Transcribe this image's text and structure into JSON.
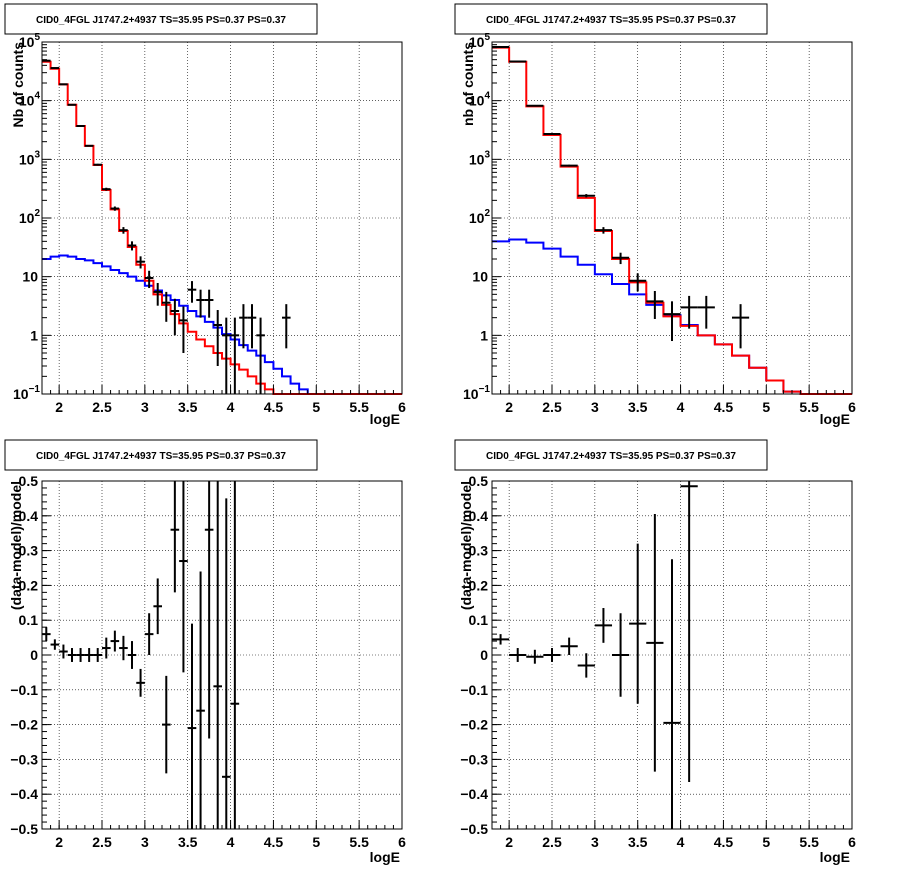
{
  "chart_data": [
    {
      "id": "p1",
      "type": "step-histogram",
      "title": "CID0_4FGL J1747.2+4937 TS=35.95 PS=0.37 PS=0.37",
      "xlabel": "logE",
      "ylabel": "Nb of counts",
      "xlim": [
        1.8,
        6.0
      ],
      "ylim": [
        0.1,
        100000
      ],
      "log_y": true,
      "grid": true,
      "x_ticks": [
        2,
        2.5,
        3,
        3.5,
        4,
        4.5,
        5,
        5.5,
        6
      ],
      "x_tick_labels": [
        "2",
        "2.5",
        "3",
        "3.5",
        "4",
        "4.5",
        "5",
        "5.5",
        "6"
      ],
      "y_ticks": [
        0.1,
        1,
        10,
        100,
        1000,
        10000,
        100000
      ],
      "y_tick_labels": [
        [
          "10",
          "−1"
        ],
        [
          "1",
          ""
        ],
        [
          "10",
          ""
        ],
        [
          "10",
          "2"
        ],
        [
          "10",
          "3"
        ],
        [
          "10",
          "4"
        ],
        [
          "10",
          "5"
        ]
      ],
      "bin_edges": [
        1.8,
        1.9,
        2.0,
        2.1,
        2.2,
        2.3,
        2.4,
        2.5,
        2.6,
        2.7,
        2.8,
        2.9,
        3.0,
        3.1,
        3.2,
        3.3,
        3.4,
        3.5,
        3.6,
        3.7,
        3.8,
        3.9,
        4.0,
        4.1,
        4.2,
        4.3,
        4.4,
        4.5,
        4.6,
        4.7,
        4.8,
        4.9,
        5.0,
        5.1,
        5.2,
        5.3,
        5.4,
        5.5,
        5.6,
        5.7,
        5.8,
        5.9,
        6.0
      ],
      "series": [
        {
          "color": "#0000ff",
          "kind": "step",
          "values": [
            20,
            22,
            23,
            22,
            20,
            19,
            17,
            15,
            13,
            11.5,
            10,
            8.5,
            7,
            5.8,
            4.8,
            4,
            3.2,
            2.6,
            2.1,
            1.7,
            1.35,
            1.05,
            0.85,
            0.68,
            0.55,
            0.45,
            0.35,
            0.27,
            0.2,
            0.15,
            0.12,
            0.1,
            0.1,
            0.1,
            0.1,
            0.1,
            0.1,
            0.1,
            0.1,
            0.1,
            0.1,
            0.1
          ]
        },
        {
          "color": "#ff0000",
          "kind": "step",
          "values": [
            46000,
            35000,
            19000,
            8500,
            3700,
            1700,
            800,
            300,
            140,
            60,
            32,
            16,
            8.5,
            5,
            3.3,
            2.3,
            1.6,
            1.15,
            0.85,
            0.65,
            0.5,
            0.4,
            0.32,
            0.26,
            0.2,
            0.15,
            0.12,
            0.1,
            0.1,
            0.1,
            0.1,
            0.1,
            0.1,
            0.1,
            0.1,
            0.1,
            0.1,
            0.1,
            0.1,
            0.1,
            0.1,
            0.1
          ]
        },
        {
          "color": "#000000",
          "kind": "points",
          "x": [
            1.85,
            1.95,
            2.05,
            2.15,
            2.25,
            2.35,
            2.45,
            2.55,
            2.65,
            2.75,
            2.85,
            2.95,
            3.05,
            3.15,
            3.25,
            3.35,
            3.45,
            3.55,
            3.65,
            3.75,
            3.85,
            3.95,
            4.05,
            4.15,
            4.25,
            4.35,
            4.65
          ],
          "y": [
            48000,
            36000,
            19000,
            8500,
            3700,
            1700,
            810,
            310,
            145,
            62,
            34,
            18,
            9.5,
            5.5,
            3.6,
            2.6,
            1.8,
            6,
            4,
            4,
            1.5,
            1,
            1,
            2,
            2,
            1,
            2
          ],
          "yerr": [
            220,
            190,
            140,
            92,
            61,
            41,
            28,
            18,
            12,
            8,
            6,
            4.2,
            3.1,
            2.3,
            1.9,
            1.6,
            1.3,
            2.4,
            2,
            2,
            1.2,
            1,
            1,
            1.4,
            1.4,
            1,
            1.4
          ]
        }
      ]
    },
    {
      "id": "p2",
      "type": "step-histogram",
      "title": "CID0_4FGL J1747.2+4937 TS=35.95 PS=0.37 PS=0.37",
      "xlabel": "logE",
      "ylabel": "nb of counts",
      "xlim": [
        1.8,
        6.0
      ],
      "ylim": [
        0.1,
        100000
      ],
      "log_y": true,
      "grid": true,
      "x_ticks": [
        2,
        2.5,
        3,
        3.5,
        4,
        4.5,
        5,
        5.5,
        6
      ],
      "x_tick_labels": [
        "2",
        "2.5",
        "3",
        "3.5",
        "4",
        "4.5",
        "5",
        "5.5",
        "6"
      ],
      "y_ticks": [
        0.1,
        1,
        10,
        100,
        1000,
        10000,
        100000
      ],
      "y_tick_labels": [
        [
          "10",
          "−1"
        ],
        [
          "1",
          ""
        ],
        [
          "10",
          ""
        ],
        [
          "10",
          "2"
        ],
        [
          "10",
          "3"
        ],
        [
          "10",
          "4"
        ],
        [
          "10",
          "5"
        ]
      ],
      "bin_edges": [
        1.8,
        2.0,
        2.2,
        2.4,
        2.6,
        2.8,
        3.0,
        3.2,
        3.4,
        3.6,
        3.8,
        4.0,
        4.2,
        4.4,
        4.6,
        4.8,
        5.0,
        5.2,
        5.4,
        5.6,
        5.8,
        6.0
      ],
      "series": [
        {
          "color": "#0000ff",
          "kind": "step",
          "values": [
            40,
            43,
            38,
            30,
            22,
            16,
            11,
            7.5,
            5,
            3.3,
            2.2,
            1.5,
            1,
            0.7,
            0.45,
            0.28,
            0.17,
            0.11,
            0.1,
            0.1,
            0.1
          ]
        },
        {
          "color": "#ff0000",
          "kind": "step",
          "values": [
            80000,
            46000,
            8000,
            2600,
            750,
            220,
            60,
            20,
            8,
            3.6,
            2.1,
            1.45,
            1,
            0.7,
            0.45,
            0.28,
            0.17,
            0.11,
            0.1,
            0.1,
            0.1
          ]
        },
        {
          "color": "#000000",
          "kind": "points",
          "x": [
            1.9,
            2.1,
            2.3,
            2.5,
            2.7,
            2.9,
            3.1,
            3.3,
            3.5,
            3.7,
            3.9,
            4.1,
            4.3,
            4.7
          ],
          "y": [
            82000,
            46500,
            8200,
            2700,
            780,
            240,
            62,
            21,
            8.5,
            3.8,
            2.3,
            3,
            3,
            2
          ],
          "yerr": [
            290,
            216,
            91,
            52,
            28,
            15.5,
            7.9,
            4.6,
            2.9,
            1.9,
            1.5,
            1.7,
            1.7,
            1.4
          ]
        }
      ]
    },
    {
      "id": "p3",
      "type": "residual",
      "title": "CID0_4FGL J1747.2+4937 TS=35.95 PS=0.37 PS=0.37",
      "xlabel": "logE",
      "ylabel": "(data-model)/model",
      "xlim": [
        1.8,
        6.0
      ],
      "ylim": [
        -0.5,
        0.5
      ],
      "log_y": false,
      "grid": true,
      "x_ticks": [
        2,
        2.5,
        3,
        3.5,
        4,
        4.5,
        5,
        5.5,
        6
      ],
      "x_tick_labels": [
        "2",
        "2.5",
        "3",
        "3.5",
        "4",
        "4.5",
        "5",
        "5.5",
        "6"
      ],
      "y_ticks": [
        -0.5,
        -0.4,
        -0.3,
        -0.2,
        -0.1,
        0,
        0.1,
        0.2,
        0.3,
        0.4,
        0.5
      ],
      "y_tick_labels": [
        "−0.5",
        "−0.4",
        "−0.3",
        "−0.2",
        "−0.1",
        "0",
        "0.1",
        "0.2",
        "0.3",
        "0.4",
        "0.5"
      ],
      "series": [
        {
          "color": "#000000",
          "kind": "points",
          "x": [
            1.85,
            1.95,
            2.05,
            2.15,
            2.25,
            2.35,
            2.45,
            2.55,
            2.65,
            2.75,
            2.85,
            2.95,
            3.05,
            3.15,
            3.25,
            3.35,
            3.45,
            3.55,
            3.65,
            3.75,
            3.85,
            3.95,
            4.05
          ],
          "y": [
            0.06,
            0.03,
            0.01,
            0.0,
            0.0,
            0.0,
            0.0,
            0.02,
            0.04,
            0.02,
            0.0,
            -0.08,
            0.06,
            0.14,
            -0.2,
            0.36,
            0.27,
            -0.21,
            -0.16,
            0.36,
            -0.09,
            -0.35,
            -0.14
          ],
          "yerr": [
            0.02,
            0.015,
            0.02,
            0.02,
            0.02,
            0.02,
            0.02,
            0.03,
            0.03,
            0.035,
            0.04,
            0.04,
            0.06,
            0.08,
            0.14,
            0.18,
            0.32,
            0.3,
            0.4,
            0.6,
            0.7,
            0.8,
            0.9
          ]
        }
      ]
    },
    {
      "id": "p4",
      "type": "residual",
      "title": "CID0_4FGL J1747.2+4937 TS=35.95 PS=0.37 PS=0.37",
      "xlabel": "logE",
      "ylabel": "(data-model)/model",
      "xlim": [
        1.8,
        6.0
      ],
      "ylim": [
        -0.5,
        0.5
      ],
      "log_y": false,
      "grid": true,
      "x_ticks": [
        2,
        2.5,
        3,
        3.5,
        4,
        4.5,
        5,
        5.5,
        6
      ],
      "x_tick_labels": [
        "2",
        "2.5",
        "3",
        "3.5",
        "4",
        "4.5",
        "5",
        "5.5",
        "6"
      ],
      "y_ticks": [
        -0.5,
        -0.4,
        -0.3,
        -0.2,
        -0.1,
        0,
        0.1,
        0.2,
        0.3,
        0.4,
        0.5
      ],
      "y_tick_labels": [
        "−0.5",
        "−0.4",
        "−0.3",
        "−0.2",
        "−0.1",
        "0",
        "0.1",
        "0.2",
        "0.3",
        "0.4",
        "0.5"
      ],
      "series": [
        {
          "color": "#000000",
          "kind": "points",
          "x": [
            1.9,
            2.1,
            2.3,
            2.5,
            2.7,
            2.9,
            3.1,
            3.3,
            3.5,
            3.7,
            3.9,
            4.1
          ],
          "y": [
            0.045,
            0.0,
            -0.005,
            0.0,
            0.025,
            -0.03,
            0.085,
            0.0,
            0.09,
            0.035,
            -0.195,
            0.485
          ],
          "yerr": [
            0.015,
            0.02,
            0.02,
            0.02,
            0.025,
            0.035,
            0.05,
            0.12,
            0.23,
            0.37,
            0.47,
            0.85
          ]
        }
      ]
    }
  ]
}
